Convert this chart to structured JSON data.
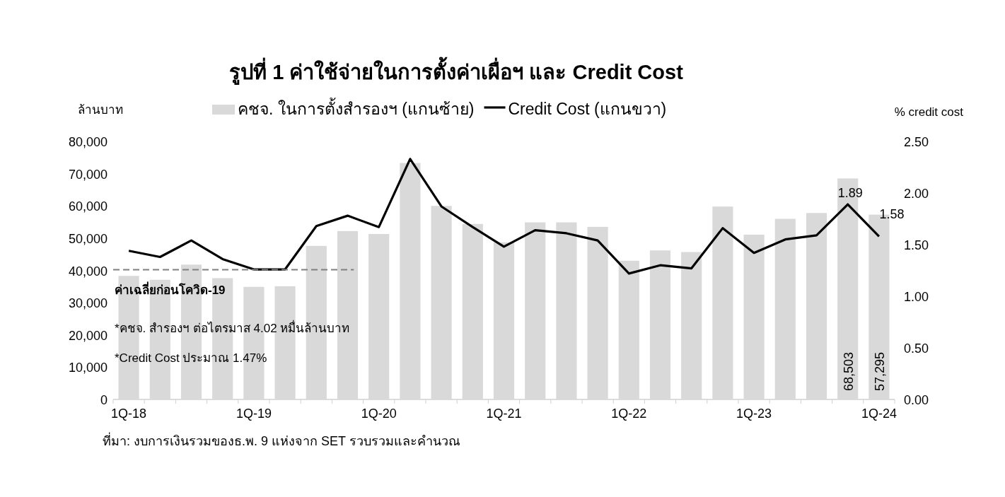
{
  "chart_data": {
    "type": "bar",
    "title": "รูปที่ 1 ค่าใช้จ่ายในการตั้งค่าเผื่อฯ และ Credit Cost",
    "ylabel": "ล้านบาท",
    "y2label": "% credit cost",
    "categories": [
      "1Q-18",
      null,
      null,
      null,
      "1Q-19",
      null,
      null,
      null,
      "1Q-20",
      null,
      null,
      null,
      "1Q-21",
      null,
      null,
      null,
      "1Q-22",
      null,
      null,
      null,
      "1Q-23",
      null,
      null,
      null,
      "1Q-24"
    ],
    "series": [
      {
        "name": "คชจ. ในการตั้งสำรองฯ (แกนซ้าย)",
        "color": "#d9d9d9",
        "values": [
          38300,
          37100,
          41800,
          37600,
          34900,
          35100,
          47600,
          52200,
          51300,
          73300,
          60000,
          54400,
          48700,
          54900,
          54900,
          53500,
          43000,
          46200,
          45700,
          59800,
          51100,
          56000,
          57800,
          68503,
          57295
        ],
        "value_labels": [
          null,
          null,
          null,
          null,
          null,
          null,
          null,
          null,
          null,
          null,
          null,
          null,
          null,
          null,
          null,
          null,
          null,
          null,
          null,
          null,
          null,
          null,
          null,
          "68,503",
          "57,295"
        ]
      },
      {
        "name": "Credit Cost (แกนขวา)",
        "type": "line",
        "axis": "y2",
        "color": "#000000",
        "values": [
          1.44,
          1.38,
          1.54,
          1.36,
          1.26,
          1.26,
          1.68,
          1.78,
          1.67,
          2.33,
          1.87,
          1.67,
          1.48,
          1.64,
          1.61,
          1.54,
          1.22,
          1.3,
          1.27,
          1.66,
          1.42,
          1.55,
          1.59,
          1.89,
          1.58
        ],
        "value_labels": [
          null,
          null,
          null,
          null,
          null,
          null,
          null,
          null,
          null,
          null,
          null,
          null,
          null,
          null,
          null,
          null,
          null,
          null,
          null,
          null,
          null,
          null,
          null,
          "1.89",
          "1.58"
        ]
      }
    ],
    "ylim": [
      0,
      80000
    ],
    "yticks": [
      {
        "value": 0,
        "label": "0"
      },
      {
        "value": 10000,
        "label": "10,000"
      },
      {
        "value": 20000,
        "label": "20,000"
      },
      {
        "value": 30000,
        "label": "30,000"
      },
      {
        "value": 40000,
        "label": "40,000"
      },
      {
        "value": 50000,
        "label": "50,000"
      },
      {
        "value": 60000,
        "label": "60,000"
      },
      {
        "value": 70000,
        "label": "70,000"
      },
      {
        "value": 80000,
        "label": "80,000"
      }
    ],
    "y2lim": [
      0,
      2.5
    ],
    "y2ticks": [
      {
        "value": 0,
        "label": "0.00"
      },
      {
        "value": 0.5,
        "label": "0.50"
      },
      {
        "value": 1,
        "label": "1.00"
      },
      {
        "value": 1.5,
        "label": "1.50"
      },
      {
        "value": 2,
        "label": "2.00"
      },
      {
        "value": 2.5,
        "label": "2.50"
      }
    ],
    "ref_lines": [
      {
        "axis": "y",
        "value": 40200,
        "label": "ค่าเฉลี่ยก่อนโควิด-19",
        "color": "#808080",
        "line_style": "dashed"
      }
    ],
    "annotations": [
      "*คชจ. สำรองฯ ต่อไตรมาส 4.02 หมื่นล้านบาท",
      "*Credit Cost ประมาณ 1.47%",
      "ที่มา: งบการเงินรวมของธ.พ. 9 แห่งจาก SET รวบรวมและคำนวณ"
    ],
    "legend": "top",
    "grid": false
  }
}
